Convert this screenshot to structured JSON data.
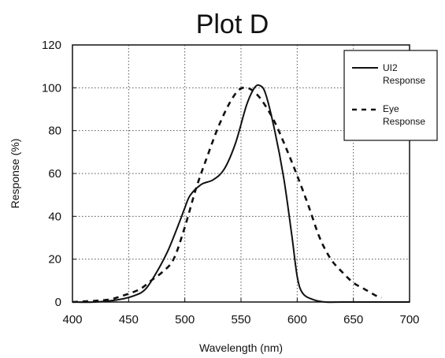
{
  "chart_data": {
    "type": "line",
    "title": "Plot D",
    "xlabel": "Wavelength (nm)",
    "ylabel": "Response (%)",
    "xlim": [
      400,
      700
    ],
    "ylim": [
      0,
      120
    ],
    "x_ticks": [
      "400",
      "450",
      "500",
      "550",
      "600",
      "650",
      "700"
    ],
    "y_ticks": [
      "0",
      "20",
      "40",
      "60",
      "80",
      "100",
      "120"
    ],
    "grid": true,
    "legend_position": "top-right",
    "series": [
      {
        "name": "UI2 Response",
        "style": "solid",
        "color": "#111111",
        "x": [
          400,
          420,
          440,
          455,
          465,
          475,
          485,
          495,
          500,
          505,
          515,
          525,
          535,
          545,
          555,
          562,
          567,
          572,
          580,
          588,
          595,
          600,
          605,
          615,
          625,
          640,
          660,
          700
        ],
        "y": [
          0,
          0,
          1,
          3,
          6,
          14,
          24,
          37,
          44,
          50,
          55,
          57,
          62,
          74,
          92,
          100,
          101,
          97,
          80,
          58,
          32,
          12,
          4,
          1,
          0,
          0,
          0,
          0
        ]
      },
      {
        "name": "Eye Response",
        "style": "dashed",
        "color": "#111111",
        "x": [
          400,
          430,
          445,
          460,
          470,
          480,
          490,
          500,
          510,
          520,
          530,
          540,
          548,
          555,
          562,
          570,
          580,
          590,
          600,
          610,
          620,
          630,
          640,
          650,
          660,
          670,
          675
        ],
        "y": [
          0,
          1,
          3,
          6,
          10,
          14,
          20,
          35,
          53,
          68,
          82,
          93,
          99,
          100,
          98,
          93,
          84,
          72,
          59,
          45,
          30,
          20,
          14,
          9,
          6,
          3,
          2
        ]
      }
    ],
    "legend": [
      {
        "label_line1": "UI2",
        "label_line2": "Response",
        "style": "solid"
      },
      {
        "label_line1": "Eye",
        "label_line2": "Response",
        "style": "dashed"
      }
    ]
  }
}
